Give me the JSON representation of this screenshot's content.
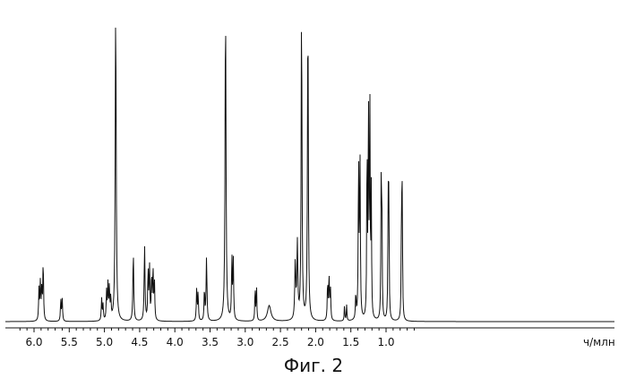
{
  "chart_data": {
    "type": "line",
    "xlabel": "ч/млн",
    "x_reversed": true,
    "xlim": [
      6.3,
      0.55
    ],
    "ylim": [
      0,
      100
    ],
    "xticks": [
      "6.0",
      "5.5",
      "5.0",
      "4.5",
      "4.0",
      "3.5",
      "3.0",
      "2.5",
      "2.0",
      "1.5",
      "1.0"
    ],
    "grid": false,
    "series": [
      {
        "peaks": [
          {
            "x": 5.93,
            "y": 10,
            "w": 0.006
          },
          {
            "x": 5.91,
            "y": 12,
            "w": 0.006
          },
          {
            "x": 5.89,
            "y": 10,
            "w": 0.006
          },
          {
            "x": 5.87,
            "y": 19,
            "w": 0.006
          },
          {
            "x": 5.62,
            "y": 7,
            "w": 0.006
          },
          {
            "x": 5.6,
            "y": 7,
            "w": 0.006
          },
          {
            "x": 5.04,
            "y": 7,
            "w": 0.006
          },
          {
            "x": 5.02,
            "y": 5,
            "w": 0.006
          },
          {
            "x": 4.97,
            "y": 9,
            "w": 0.006
          },
          {
            "x": 4.95,
            "y": 11,
            "w": 0.006
          },
          {
            "x": 4.93,
            "y": 10,
            "w": 0.006
          },
          {
            "x": 4.91,
            "y": 7,
            "w": 0.006
          },
          {
            "x": 4.84,
            "y": 100,
            "w": 0.008
          },
          {
            "x": 4.59,
            "y": 22,
            "w": 0.007
          },
          {
            "x": 4.43,
            "y": 24,
            "w": 0.007
          },
          {
            "x": 4.38,
            "y": 16,
            "w": 0.006
          },
          {
            "x": 4.36,
            "y": 17,
            "w": 0.006
          },
          {
            "x": 4.33,
            "y": 14,
            "w": 0.006
          },
          {
            "x": 4.31,
            "y": 16,
            "w": 0.006
          },
          {
            "x": 4.29,
            "y": 12,
            "w": 0.006
          },
          {
            "x": 3.69,
            "y": 10,
            "w": 0.006
          },
          {
            "x": 3.67,
            "y": 9,
            "w": 0.006
          },
          {
            "x": 3.58,
            "y": 10,
            "w": 0.006
          },
          {
            "x": 3.55,
            "y": 20,
            "w": 0.007
          },
          {
            "x": 3.28,
            "y": 100,
            "w": 0.008
          },
          {
            "x": 3.19,
            "y": 20,
            "w": 0.006
          },
          {
            "x": 3.17,
            "y": 19,
            "w": 0.006
          },
          {
            "x": 2.86,
            "y": 11,
            "w": 0.005
          },
          {
            "x": 2.84,
            "y": 11,
            "w": 0.005
          },
          {
            "x": 2.66,
            "y": 5,
            "w": 0.03
          },
          {
            "x": 2.29,
            "y": 18,
            "w": 0.008
          },
          {
            "x": 2.26,
            "y": 24,
            "w": 0.008
          },
          {
            "x": 2.2,
            "y": 100,
            "w": 0.007
          },
          {
            "x": 2.11,
            "y": 100,
            "w": 0.007
          },
          {
            "x": 1.83,
            "y": 12,
            "w": 0.006
          },
          {
            "x": 1.81,
            "y": 14,
            "w": 0.006
          },
          {
            "x": 1.79,
            "y": 10,
            "w": 0.006
          },
          {
            "x": 1.59,
            "y": 5,
            "w": 0.005
          },
          {
            "x": 1.56,
            "y": 5,
            "w": 0.005
          },
          {
            "x": 1.43,
            "y": 8,
            "w": 0.006
          },
          {
            "x": 1.39,
            "y": 50,
            "w": 0.006
          },
          {
            "x": 1.37,
            "y": 50,
            "w": 0.006
          },
          {
            "x": 1.27,
            "y": 58,
            "w": 0.005
          },
          {
            "x": 1.25,
            "y": 70,
            "w": 0.005
          },
          {
            "x": 1.23,
            "y": 67,
            "w": 0.005
          },
          {
            "x": 1.21,
            "y": 40,
            "w": 0.005
          },
          {
            "x": 1.07,
            "y": 39,
            "w": 0.005
          },
          {
            "x": 1.06,
            "y": 39,
            "w": 0.005
          },
          {
            "x": 0.97,
            "y": 38,
            "w": 0.005
          },
          {
            "x": 0.96,
            "y": 38,
            "w": 0.005
          },
          {
            "x": 0.78,
            "y": 37,
            "w": 0.005
          },
          {
            "x": 0.77,
            "y": 37,
            "w": 0.005
          }
        ]
      }
    ]
  },
  "caption": "Фиг. 2"
}
